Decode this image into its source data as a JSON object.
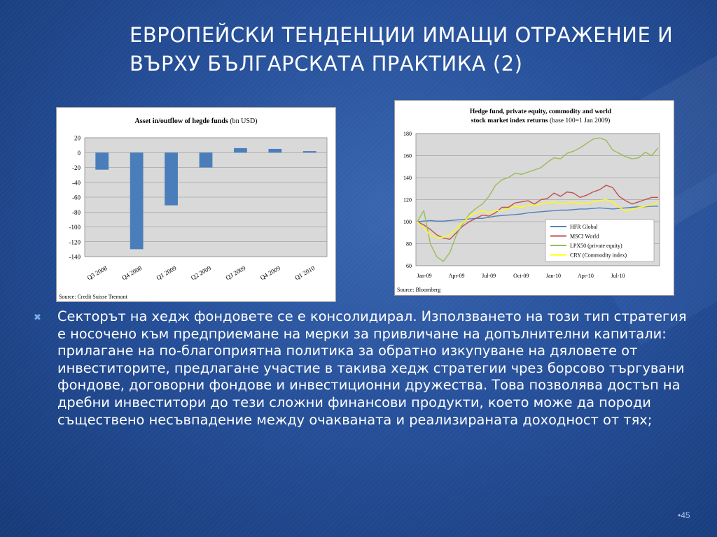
{
  "slide": {
    "title": "ЕВРОПЕЙСКИ ТЕНДЕНЦИИ ИМАЩИ ОТРАЖЕНИЕ И ВЪРХУ БЪЛГАРСКАТА ПРАКТИКА (2)",
    "bullet_icon": "x-bullet-icon",
    "bullet_text": "Секторът на хедж фондовете се е консолидирал. Използването на този тип стратегия е носочено към предприемане на мерки за привличане на допълнителни капитали: прилагане на по-благоприятна политика за обратно изкупуване на дяловете от инвеститорите, предлагане участие в такива хедж стратегии чрез борсово търгувани фондове, договорни фондове и инвестиционни дружества. Това позволява достъп на дребни инвеститори до тези сложни финансови продукти, което може да породи съществено несъвпадение между очакваната и реализираната доходност от тях;",
    "page_number": "•45"
  },
  "colors": {
    "plot_bg": "#d9d9d9",
    "bar": "#4a7ebb",
    "hfr": "#4f81bd",
    "msci": "#c0504d",
    "lpx": "#9bbb59",
    "cry": "#ffff00"
  },
  "chart_data": [
    {
      "type": "bar",
      "title": "Asset in/outflow of hegde funds",
      "title_suffix": "(bn USD)",
      "categories": [
        "Q3 2008",
        "Q4 2008",
        "Q1 2009",
        "Q2 2009",
        "Q3 2009",
        "Q4 2009",
        "Q1 2010"
      ],
      "values": [
        -23,
        -130,
        -71,
        -20,
        6,
        5,
        2
      ],
      "ylim": [
        -140,
        20
      ],
      "yticks": [
        20,
        0,
        -20,
        -40,
        -60,
        -80,
        -100,
        -120,
        -140
      ],
      "grid": true,
      "source": "Source: Credit Suisse Tremont"
    },
    {
      "type": "line",
      "title_line1": "Hedge fund, private equity, commodity and world",
      "title_line2": "stock market index returns",
      "title_suffix": "(base 100=1 Jan 2009)",
      "x_labels": [
        "Jan-09",
        "Apr-09",
        "Jul-09",
        "Oct-09",
        "Jan-10",
        "Apr-10",
        "Jul-10"
      ],
      "ylim": [
        60,
        180
      ],
      "yticks": [
        180,
        160,
        140,
        120,
        100,
        80,
        60
      ],
      "grid": true,
      "legend_position": "bottom-right",
      "series": [
        {
          "name": "HFR Global",
          "color": "#4f81bd",
          "values": [
            100,
            100.5,
            101,
            100.5,
            100.5,
            101,
            101.5,
            102,
            102.5,
            103,
            103,
            104,
            105,
            105.5,
            106,
            106.5,
            107,
            108,
            108.5,
            109,
            109.5,
            110,
            110.5,
            110.5,
            111,
            111.5,
            111.5,
            112,
            112.5,
            112,
            111.5,
            112,
            112.5,
            113,
            113.5,
            113.5,
            114,
            114
          ]
        },
        {
          "name": "MSCI World",
          "color": "#c0504d",
          "values": [
            100,
            97,
            93,
            88,
            85,
            84,
            90,
            96,
            100,
            103,
            106,
            105,
            108,
            113,
            113,
            117,
            118,
            119,
            116,
            120,
            121,
            126,
            123,
            127,
            126,
            122,
            124,
            127,
            129,
            133,
            131,
            123,
            119,
            116,
            118,
            120,
            122,
            122
          ]
        },
        {
          "name": "LPX50 (private equity)",
          "color": "#9bbb59",
          "values": [
            100,
            110,
            80,
            68,
            64,
            72,
            88,
            98,
            107,
            112,
            116,
            123,
            133,
            138,
            140,
            144,
            143,
            145,
            147,
            149,
            154,
            158,
            157,
            162,
            164,
            167,
            171,
            175,
            176,
            174,
            165,
            162,
            159,
            157,
            158,
            163,
            160,
            167
          ]
        },
        {
          "name": "CRY (Commodity index)",
          "color": "#ffff00",
          "values": [
            100,
            94,
            88,
            85,
            86,
            88,
            94,
            99,
            105,
            108,
            110,
            108,
            110,
            110,
            112,
            114,
            113,
            115,
            115,
            116,
            117,
            118,
            116,
            117,
            118,
            116,
            117,
            118,
            119,
            120,
            118,
            113,
            110,
            111,
            113,
            114,
            115,
            118
          ]
        }
      ],
      "source": "Source: Bloomberg"
    }
  ]
}
